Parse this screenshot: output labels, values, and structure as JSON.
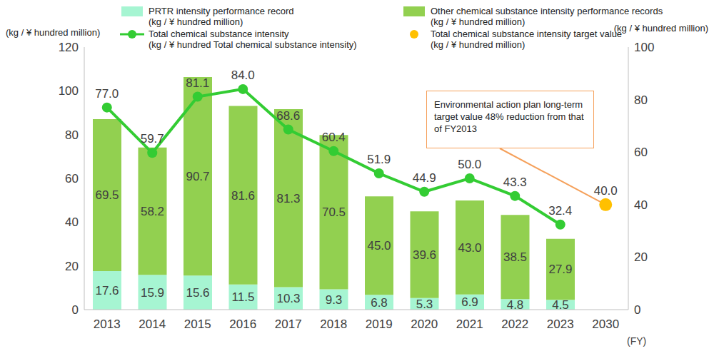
{
  "chart_data": {
    "type": "bar",
    "stacked": true,
    "data_labels": true,
    "grid": false,
    "y_label": "(kg / ¥ hundred million)",
    "y2_label": "(kg / ¥ hundred million)",
    "x_label": "(FY)",
    "annotation": "Environmental action plan long-term target value 48% reduction from that of FY2013",
    "categories": [
      "2013",
      "2014",
      "2015",
      "2016",
      "2017",
      "2018",
      "2019",
      "2020",
      "2021",
      "2022",
      "2023",
      "2030"
    ],
    "ylim": [
      0,
      120
    ],
    "yticks": [
      0,
      20,
      40,
      60,
      80,
      100,
      120
    ],
    "y2lim": [
      0,
      100
    ],
    "y2ticks": [
      0,
      20,
      40,
      60,
      80,
      100
    ],
    "series": [
      {
        "name": "PRTR intensity performance record (kg / ¥ hundred million)",
        "type": "bar",
        "color": "#a6f5d2",
        "values": [
          17.6,
          15.9,
          15.6,
          11.5,
          10.3,
          9.3,
          6.8,
          5.3,
          6.9,
          4.8,
          4.5,
          null
        ]
      },
      {
        "name": "Other chemical substance intensity performance records (kg / ¥ hundred million)",
        "type": "bar",
        "color": "#92d050",
        "values": [
          69.5,
          58.2,
          90.7,
          81.6,
          81.3,
          70.5,
          45.0,
          39.6,
          43.0,
          38.5,
          27.9,
          null
        ],
        "value_labels": [
          "69.5",
          "58.2",
          "90.7",
          "81.6",
          "81.3",
          "70.5",
          "45.0",
          "39.6",
          "43.0",
          "38.5",
          "27.9",
          null
        ]
      },
      {
        "name": "Total chemical substance intensity (kg / ¥ hundred Total chemical substance intensity)",
        "type": "line",
        "axis": "y2",
        "color": "#33cc33",
        "marker": "circle",
        "line_style": "solid",
        "values": [
          77.0,
          59.7,
          81.1,
          84.0,
          68.6,
          60.4,
          51.9,
          44.9,
          50.0,
          43.3,
          32.4,
          null
        ],
        "value_labels": [
          "77.0",
          "59.7",
          "81.1",
          "84.0",
          "68.6",
          "60.4",
          "51.9",
          "44.9",
          "50.0",
          "43.3",
          "32.4",
          null
        ]
      },
      {
        "name": "Total chemical substance intensity target value (kg / ¥ hundred million)",
        "type": "line",
        "axis": "y2",
        "color": "#ffc000",
        "marker": "circle",
        "line_style": "none",
        "values": [
          null,
          null,
          null,
          null,
          null,
          null,
          null,
          null,
          null,
          null,
          null,
          40.0
        ],
        "value_labels": [
          null,
          null,
          null,
          null,
          null,
          null,
          null,
          null,
          null,
          null,
          null,
          "40.0"
        ]
      }
    ]
  }
}
